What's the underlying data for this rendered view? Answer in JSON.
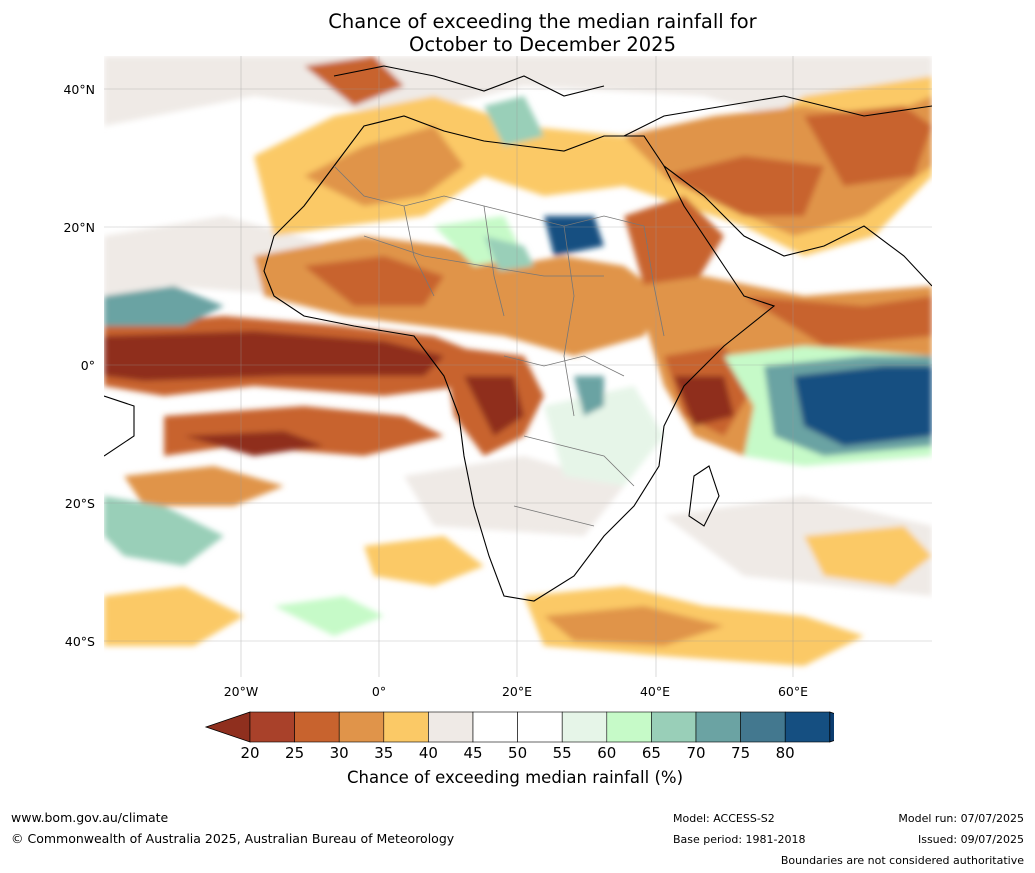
{
  "title_line1": "Chance of exceeding the median rainfall for",
  "title_line2": "October to December 2025",
  "lat_labels": [
    "40°N",
    "20°N",
    "0°",
    "20°S",
    "40°S"
  ],
  "lon_labels": [
    "20°W",
    "0°",
    "20°E",
    "40°E",
    "60°E"
  ],
  "colorbar": {
    "ticks": [
      "20",
      "25",
      "30",
      "35",
      "40",
      "45",
      "50",
      "55",
      "60",
      "65",
      "70",
      "75",
      "80"
    ],
    "label": "Chance of exceeding median rainfall (%)",
    "colors": [
      "#8f2f1e",
      "#a9412a",
      "#c8632e",
      "#e0944a",
      "#fbc966",
      "#efeae6",
      "#ffffff",
      "#ffffff",
      "#e6f5e8",
      "#c6fac8",
      "#99cfb8",
      "#6ba3a3",
      "#43788f",
      "#154f81",
      "#0c3d70"
    ]
  },
  "footer": {
    "website": "www.bom.gov.au/climate",
    "copyright": "© Commonwealth of Australia 2025, Australian Bureau of Meteorology",
    "model": "Model: ACCESS-S2",
    "base_period": "Base period: 1981-2018",
    "model_run": "Model run: 07/07/2025",
    "issued": "Issued: 09/07/2025",
    "disclaimer": "Boundaries are not considered authoritative"
  }
}
